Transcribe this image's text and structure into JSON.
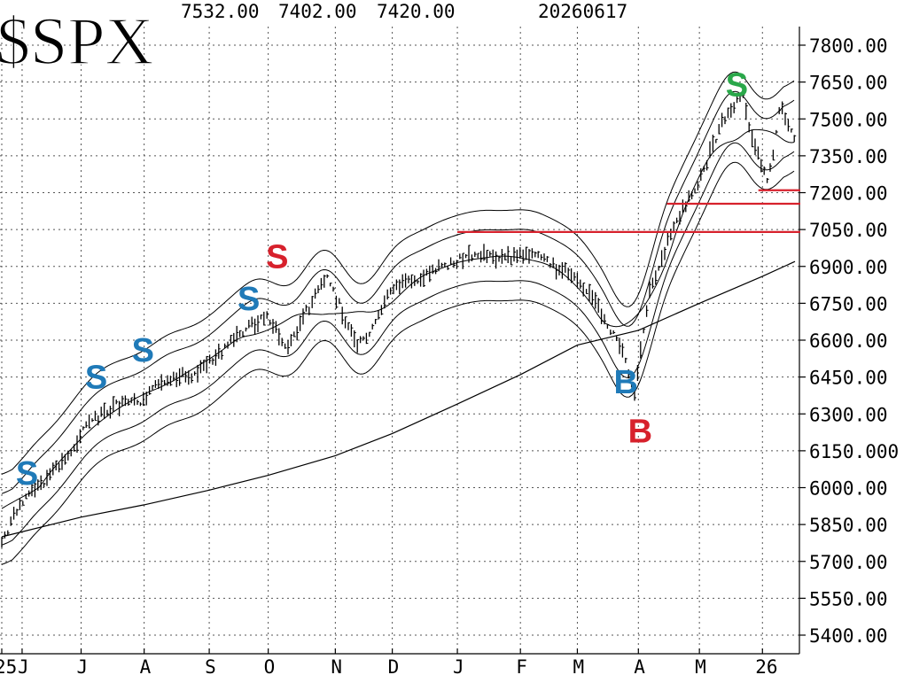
{
  "header": {
    "symbol": "$SPX",
    "high": "7532.00",
    "low": "7402.00",
    "last": "7420.00",
    "date": "20260617"
  },
  "chart_data": {
    "type": "line",
    "title": "$SPX",
    "y_axis": {
      "range": [
        5400,
        7800
      ],
      "ticks": [
        5400,
        5550,
        5700,
        5850,
        6000,
        6150,
        6300,
        6450,
        6600,
        6750,
        6900,
        7050,
        7200,
        7350,
        7500,
        7650,
        7800
      ],
      "tick_labels": [
        "5400.00",
        "5550.00",
        "5700.00",
        "5850.00",
        "6000.00",
        "6150.000",
        "6300.00",
        "6450.00",
        "6600.00",
        "6750.00",
        "6900.00",
        "7050.00",
        "7200.00",
        "7350.00",
        "7500.00",
        "7650.00",
        "7800.00"
      ],
      "position": "right"
    },
    "x_axis": {
      "range": [
        "2025-05-23",
        "2026-06-17"
      ],
      "tick_labels": [
        "25",
        "J",
        "J",
        "A",
        "S",
        "O",
        "N",
        "D",
        "J",
        "F",
        "M",
        "A",
        "M",
        "26"
      ],
      "tick_dates": [
        "2025-05-23",
        "2025-06-02",
        "2025-07-01",
        "2025-08-01",
        "2025-09-02",
        "2025-10-01",
        "2025-11-03",
        "2025-12-01",
        "2026-01-02",
        "2026-02-02",
        "2026-03-02",
        "2026-04-01",
        "2026-05-01",
        "2026-06-01"
      ]
    },
    "grid": true,
    "series": [
      {
        "role": "price",
        "x": [
          "2025-05-23",
          "2025-06-02",
          "2025-06-12",
          "2025-06-24",
          "2025-07-03",
          "2025-07-17",
          "2025-07-31",
          "2025-08-12",
          "2025-08-26",
          "2025-09-09",
          "2025-09-22",
          "2025-10-01",
          "2025-10-10",
          "2025-10-20",
          "2025-10-30",
          "2025-11-06",
          "2025-11-14",
          "2025-11-20",
          "2025-12-01",
          "2025-12-10",
          "2025-12-24",
          "2026-01-06",
          "2026-01-15",
          "2026-01-27",
          "2026-02-06",
          "2026-02-18",
          "2026-03-02",
          "2026-03-13",
          "2026-03-24",
          "2026-03-30",
          "2026-04-06",
          "2026-04-13",
          "2026-04-22",
          "2026-05-01",
          "2026-05-12",
          "2026-05-22",
          "2026-05-28",
          "2026-06-04",
          "2026-06-10",
          "2026-06-17"
        ],
        "values": [
          5780,
          5950,
          6020,
          6120,
          6250,
          6330,
          6350,
          6450,
          6460,
          6560,
          6660,
          6700,
          6560,
          6720,
          6860,
          6720,
          6580,
          6620,
          6820,
          6830,
          6900,
          6930,
          6950,
          6930,
          6960,
          6900,
          6860,
          6720,
          6560,
          6360,
          6780,
          6950,
          7120,
          7250,
          7480,
          7600,
          7380,
          7250,
          7560,
          7420
        ]
      },
      {
        "role": "200-day moving average",
        "x": [
          "2025-05-23",
          "2025-07-01",
          "2025-08-01",
          "2025-09-02",
          "2025-10-01",
          "2025-11-03",
          "2025-12-01",
          "2026-01-02",
          "2026-02-02",
          "2026-03-02",
          "2026-04-01",
          "2026-05-01",
          "2026-06-01",
          "2026-06-17"
        ],
        "values": [
          5800,
          5880,
          5930,
          5990,
          6050,
          6130,
          6220,
          6340,
          6460,
          6580,
          6640,
          6750,
          6860,
          6920
        ]
      }
    ],
    "resistance_lines": [
      {
        "value": 7040,
        "from": "2026-01-02",
        "to": "2026-06-17"
      },
      {
        "value": 7155,
        "from": "2026-04-15",
        "to": "2026-06-17"
      },
      {
        "value": 7210,
        "from": "2026-05-30",
        "to": "2026-06-17"
      }
    ],
    "annotations": [
      {
        "text": "S",
        "date": "2025-06-05",
        "value": 6060,
        "color": "#1f7ab8"
      },
      {
        "text": "S",
        "date": "2025-07-09",
        "value": 6450,
        "color": "#1f7ab8"
      },
      {
        "text": "S",
        "date": "2025-08-01",
        "value": 6560,
        "color": "#1f7ab8"
      },
      {
        "text": "S",
        "date": "2025-09-22",
        "value": 6770,
        "color": "#1f7ab8"
      },
      {
        "text": "S",
        "date": "2025-10-06",
        "value": 6940,
        "color": "#d7212c"
      },
      {
        "text": "B",
        "date": "2026-03-26",
        "value": 6430,
        "color": "#1f7ab8"
      },
      {
        "text": "B",
        "date": "2026-04-02",
        "value": 6230,
        "color": "#d7212c"
      },
      {
        "text": "S",
        "date": "2026-05-20",
        "value": 7640,
        "color": "#2aa84a"
      }
    ]
  }
}
